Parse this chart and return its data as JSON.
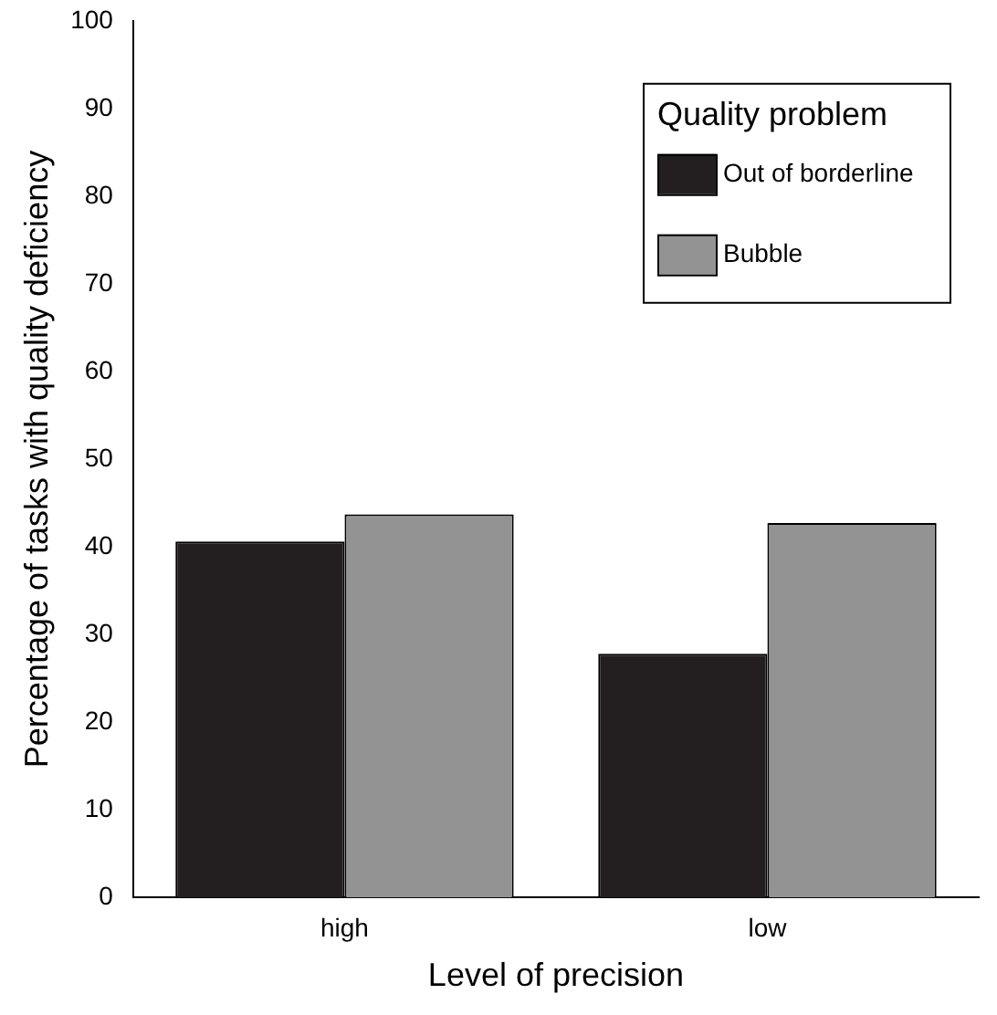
{
  "chart_data": {
    "type": "bar",
    "xlabel": "Level of precision",
    "ylabel": "Percentage of tasks with quality deficiency",
    "legend_title": "Quality problem",
    "legend": "top right",
    "categories": [
      "high",
      "low"
    ],
    "series": [
      {
        "name": "Out of borderline",
        "color": "#231f20",
        "values": [
          40.6,
          27.8
        ]
      },
      {
        "name": "Bubble",
        "color": "#939393",
        "values": [
          43.7,
          42.7
        ]
      }
    ],
    "ylim": [
      0,
      100
    ],
    "yticks": [
      0,
      10,
      20,
      30,
      40,
      50,
      60,
      70,
      80,
      90,
      100
    ],
    "grid": false
  }
}
